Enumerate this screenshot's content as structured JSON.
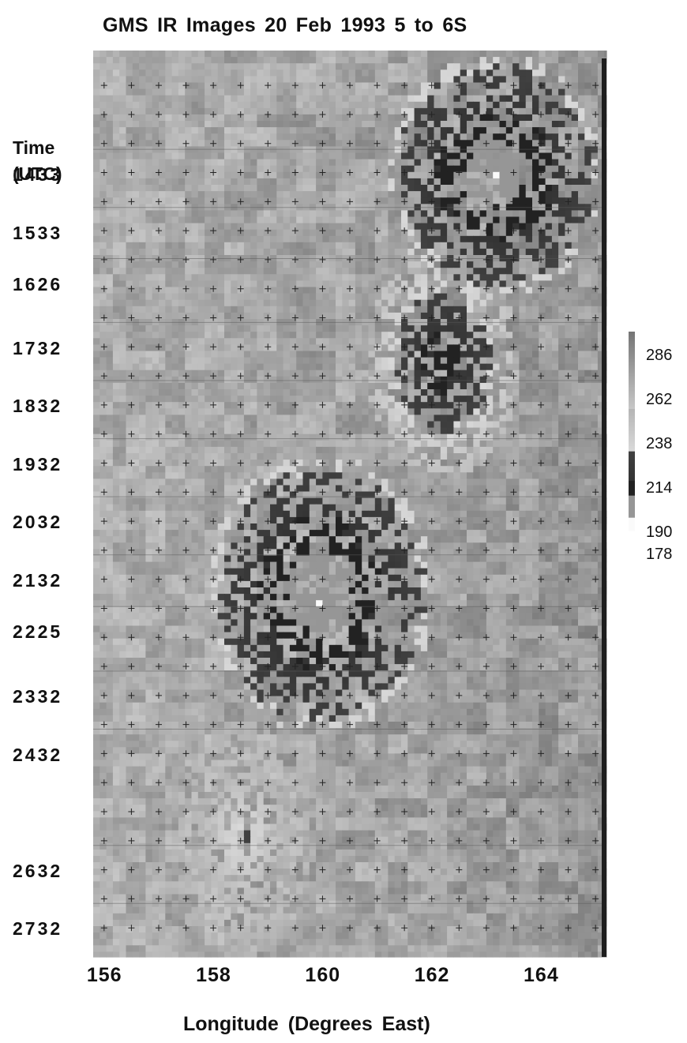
{
  "chart_data": {
    "type": "heatmap",
    "title": "GMS IR Images 20 Feb 1993   5 to 6S",
    "xlabel": "Longitude (Degrees East)",
    "ylabel": [
      "Time",
      "(UTC)"
    ],
    "x_ticks": [
      "156",
      "158",
      "160",
      "162",
      "164"
    ],
    "x_tick_values": [
      156,
      158,
      160,
      162,
      164
    ],
    "xlim": [
      155.8,
      165.2
    ],
    "y_ticks": [
      "1433",
      "1533",
      "1626",
      "1732",
      "1832",
      "1932",
      "2032",
      "2132",
      "2225",
      "2332",
      "2432",
      "2632",
      "2732"
    ],
    "y_tick_values": [
      14.55,
      15.55,
      16.43,
      17.53,
      18.53,
      19.53,
      20.53,
      21.53,
      22.42,
      23.53,
      24.53,
      26.53,
      27.53
    ],
    "ylim": [
      12.4,
      28.0
    ],
    "y_direction": "downward",
    "colorbar": {
      "ticks": [
        "286",
        "262",
        "238",
        "214",
        "190",
        "178"
      ],
      "values": [
        286,
        262,
        238,
        214,
        190,
        178
      ],
      "position": "right"
    },
    "cold_cloud_regions": [
      {
        "time_start": 12.5,
        "time_end": 16.5,
        "lon_start": 161.2,
        "lon_end": 165.0,
        "min_temp": 178
      },
      {
        "time_start": 15.8,
        "time_end": 19.6,
        "lon_start": 160.8,
        "lon_end": 163.5,
        "min_temp": 190
      },
      {
        "time_start": 19.4,
        "time_end": 24.0,
        "lon_start": 157.9,
        "lon_end": 161.9,
        "min_temp": 178
      },
      {
        "time_start": 23.8,
        "time_end": 28.0,
        "lon_start": 157.0,
        "lon_end": 160.0,
        "min_temp": 214
      }
    ],
    "grid": true
  }
}
